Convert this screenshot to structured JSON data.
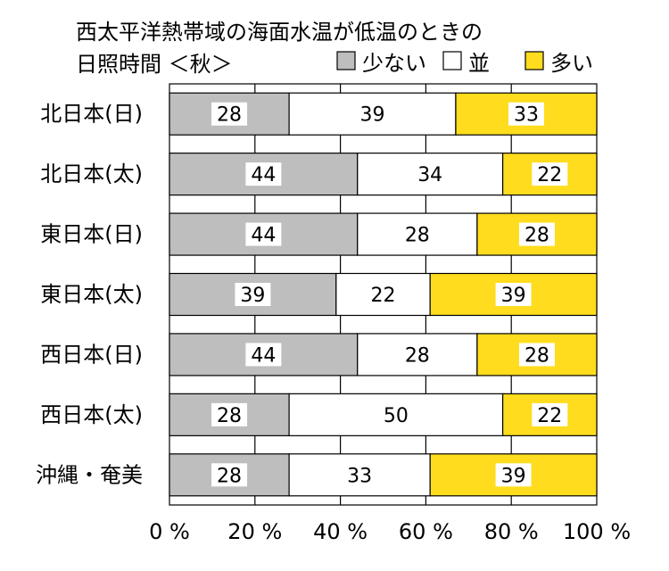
{
  "chart_data": {
    "type": "bar",
    "stacked": true,
    "orientation": "horizontal",
    "title_line1": "西太平洋熱帯域の海面水温が低温のときの",
    "title_line2": "日照時間 ＜秋＞",
    "categories": [
      "北日本(日)",
      "北日本(太)",
      "東日本(日)",
      "東日本(太)",
      "西日本(日)",
      "西日本(太)",
      "沖縄・奄美"
    ],
    "series": [
      {
        "name": "少ない",
        "color": "#bebebe",
        "values": [
          28,
          44,
          44,
          39,
          44,
          28,
          28
        ]
      },
      {
        "name": "並",
        "color": "#ffffff",
        "values": [
          39,
          34,
          28,
          22,
          28,
          50,
          33
        ]
      },
      {
        "name": "多い",
        "color": "#ffdc1e",
        "values": [
          33,
          22,
          28,
          39,
          28,
          22,
          39
        ]
      }
    ],
    "x_ticks": [
      "0 %",
      "20 %",
      "40 %",
      "60 %",
      "80 %",
      "100 %"
    ],
    "xlim": [
      0,
      100
    ],
    "grid": true,
    "legend_position": "top-right"
  }
}
